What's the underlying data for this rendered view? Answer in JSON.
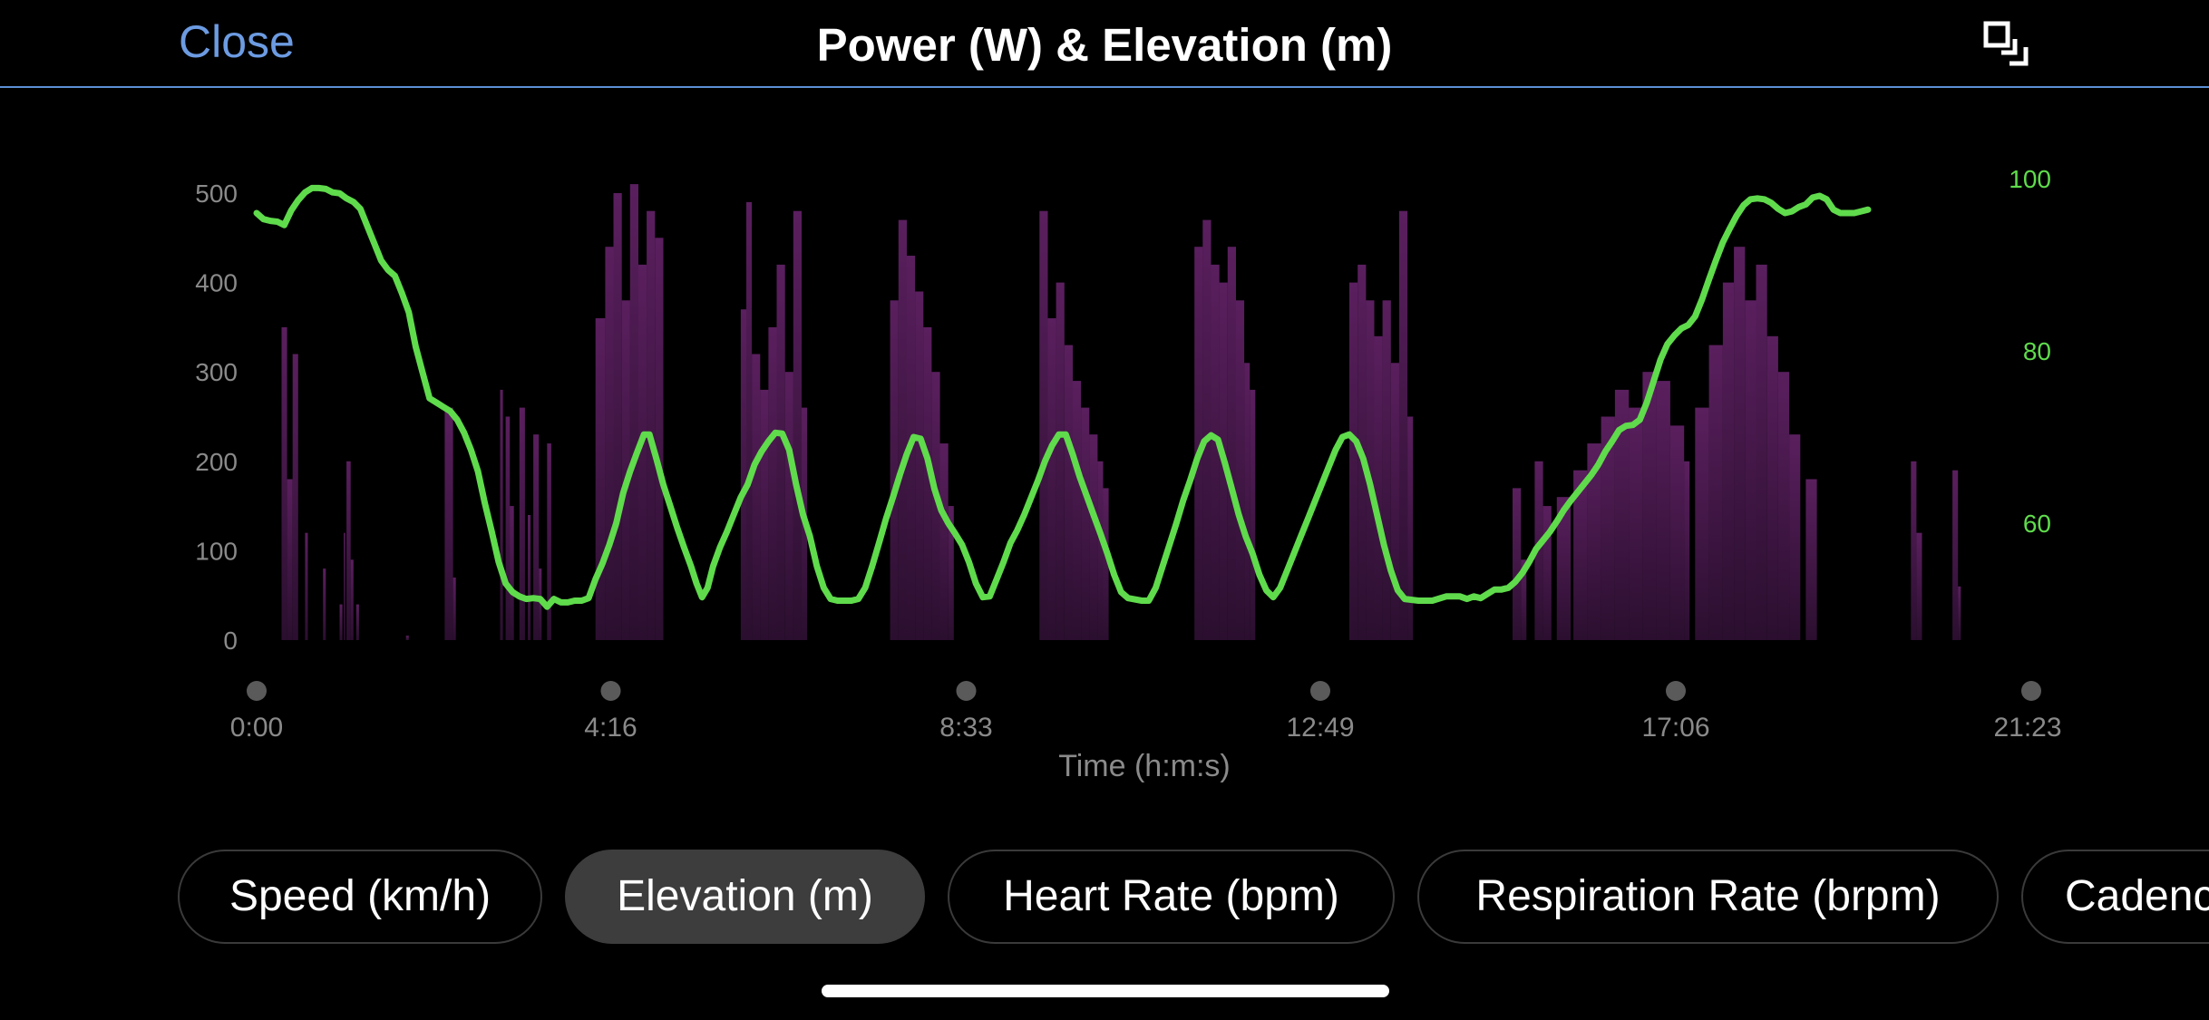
{
  "header": {
    "close_label": "Close",
    "title": "Power (W) & Elevation (m)"
  },
  "icons": {
    "expand": "expand-window-icon"
  },
  "chart_data": {
    "type": "area+line",
    "x_axis": {
      "label": "Time (h:m:s)",
      "tick_labels": [
        "0:00",
        "4:16",
        "8:33",
        "12:49",
        "17:06",
        "21:23"
      ],
      "tick_seconds": [
        0,
        256,
        513,
        769,
        1026,
        1283
      ],
      "range_seconds": [
        0,
        1283
      ]
    },
    "y_left": {
      "series": "Power (W)",
      "ticks": [
        0,
        100,
        200,
        300,
        400,
        500
      ],
      "range": [
        0,
        520
      ]
    },
    "y_right": {
      "series": "Elevation (m)",
      "ticks": [
        60,
        80,
        100
      ],
      "range": [
        47,
        100
      ]
    },
    "colors": {
      "power": "#5a1f5e",
      "elevation": "#5fdb4c",
      "axis_text": "#8a8a8a"
    },
    "power_segments": [
      {
        "t": [
          18,
          22
        ],
        "w": 350
      },
      {
        "t": [
          22,
          26
        ],
        "w": 180
      },
      {
        "t": [
          26,
          30
        ],
        "w": 320
      },
      {
        "t": [
          35,
          37
        ],
        "w": 120
      },
      {
        "t": [
          48,
          50
        ],
        "w": 80
      },
      {
        "t": [
          60,
          62
        ],
        "w": 40
      },
      {
        "t": [
          63,
          64
        ],
        "w": 120
      },
      {
        "t": [
          65,
          68
        ],
        "w": 200
      },
      {
        "t": [
          68,
          70
        ],
        "w": 90
      },
      {
        "t": [
          72,
          74
        ],
        "w": 40
      },
      {
        "t": [
          108,
          110
        ],
        "w": 5
      },
      {
        "t": [
          136,
          142
        ],
        "w": 260
      },
      {
        "t": [
          142,
          144
        ],
        "w": 70
      },
      {
        "t": [
          176,
          178
        ],
        "w": 280
      },
      {
        "t": [
          180,
          183
        ],
        "w": 250
      },
      {
        "t": [
          183,
          186
        ],
        "w": 150
      },
      {
        "t": [
          190,
          194
        ],
        "w": 260
      },
      {
        "t": [
          196,
          198
        ],
        "w": 140
      },
      {
        "t": [
          200,
          204
        ],
        "w": 230
      },
      {
        "t": [
          204,
          206
        ],
        "w": 80
      },
      {
        "t": [
          210,
          213
        ],
        "w": 220
      },
      {
        "t": [
          245,
          252
        ],
        "w": 360
      },
      {
        "t": [
          252,
          258
        ],
        "w": 440
      },
      {
        "t": [
          258,
          264
        ],
        "w": 500
      },
      {
        "t": [
          264,
          270
        ],
        "w": 380
      },
      {
        "t": [
          270,
          276
        ],
        "w": 510
      },
      {
        "t": [
          276,
          282
        ],
        "w": 420
      },
      {
        "t": [
          282,
          288
        ],
        "w": 480
      },
      {
        "t": [
          288,
          294
        ],
        "w": 450
      },
      {
        "t": [
          350,
          354
        ],
        "w": 370
      },
      {
        "t": [
          354,
          358
        ],
        "w": 490
      },
      {
        "t": [
          358,
          364
        ],
        "w": 320
      },
      {
        "t": [
          364,
          370
        ],
        "w": 280
      },
      {
        "t": [
          370,
          376
        ],
        "w": 350
      },
      {
        "t": [
          376,
          382
        ],
        "w": 420
      },
      {
        "t": [
          382,
          388
        ],
        "w": 300
      },
      {
        "t": [
          388,
          394
        ],
        "w": 480
      },
      {
        "t": [
          394,
          398
        ],
        "w": 260
      },
      {
        "t": [
          458,
          464
        ],
        "w": 380
      },
      {
        "t": [
          464,
          470
        ],
        "w": 470
      },
      {
        "t": [
          470,
          476
        ],
        "w": 430
      },
      {
        "t": [
          476,
          482
        ],
        "w": 390
      },
      {
        "t": [
          482,
          488
        ],
        "w": 350
      },
      {
        "t": [
          488,
          494
        ],
        "w": 300
      },
      {
        "t": [
          494,
          500
        ],
        "w": 220
      },
      {
        "t": [
          500,
          504
        ],
        "w": 150
      },
      {
        "t": [
          566,
          572
        ],
        "w": 480
      },
      {
        "t": [
          572,
          578
        ],
        "w": 360
      },
      {
        "t": [
          578,
          584
        ],
        "w": 400
      },
      {
        "t": [
          584,
          590
        ],
        "w": 330
      },
      {
        "t": [
          590,
          596
        ],
        "w": 290
      },
      {
        "t": [
          596,
          602
        ],
        "w": 260
      },
      {
        "t": [
          602,
          608
        ],
        "w": 230
      },
      {
        "t": [
          608,
          612
        ],
        "w": 200
      },
      {
        "t": [
          612,
          616
        ],
        "w": 170
      },
      {
        "t": [
          678,
          684
        ],
        "w": 440
      },
      {
        "t": [
          684,
          690
        ],
        "w": 470
      },
      {
        "t": [
          690,
          696
        ],
        "w": 420
      },
      {
        "t": [
          696,
          702
        ],
        "w": 400
      },
      {
        "t": [
          702,
          708
        ],
        "w": 440
      },
      {
        "t": [
          708,
          714
        ],
        "w": 380
      },
      {
        "t": [
          714,
          718
        ],
        "w": 310
      },
      {
        "t": [
          718,
          722
        ],
        "w": 280
      },
      {
        "t": [
          790,
          796
        ],
        "w": 400
      },
      {
        "t": [
          796,
          802
        ],
        "w": 420
      },
      {
        "t": [
          802,
          808
        ],
        "w": 380
      },
      {
        "t": [
          808,
          814
        ],
        "w": 340
      },
      {
        "t": [
          814,
          820
        ],
        "w": 380
      },
      {
        "t": [
          820,
          826
        ],
        "w": 310
      },
      {
        "t": [
          826,
          832
        ],
        "w": 480
      },
      {
        "t": [
          832,
          836
        ],
        "w": 250
      },
      {
        "t": [
          908,
          914
        ],
        "w": 170
      },
      {
        "t": [
          914,
          918
        ],
        "w": 90
      },
      {
        "t": [
          924,
          930
        ],
        "w": 200
      },
      {
        "t": [
          930,
          936
        ],
        "w": 150
      },
      {
        "t": [
          940,
          950
        ],
        "w": 160
      },
      {
        "t": [
          952,
          962
        ],
        "w": 190
      },
      {
        "t": [
          962,
          972
        ],
        "w": 220
      },
      {
        "t": [
          972,
          982
        ],
        "w": 250
      },
      {
        "t": [
          982,
          992
        ],
        "w": 280
      },
      {
        "t": [
          992,
          1002
        ],
        "w": 260
      },
      {
        "t": [
          1002,
          1012
        ],
        "w": 300
      },
      {
        "t": [
          1012,
          1022
        ],
        "w": 290
      },
      {
        "t": [
          1022,
          1032
        ],
        "w": 240
      },
      {
        "t": [
          1032,
          1036
        ],
        "w": 200
      },
      {
        "t": [
          1040,
          1050
        ],
        "w": 260
      },
      {
        "t": [
          1050,
          1060
        ],
        "w": 330
      },
      {
        "t": [
          1060,
          1068
        ],
        "w": 400
      },
      {
        "t": [
          1068,
          1076
        ],
        "w": 440
      },
      {
        "t": [
          1076,
          1084
        ],
        "w": 380
      },
      {
        "t": [
          1084,
          1092
        ],
        "w": 420
      },
      {
        "t": [
          1092,
          1100
        ],
        "w": 340
      },
      {
        "t": [
          1100,
          1108
        ],
        "w": 300
      },
      {
        "t": [
          1108,
          1116
        ],
        "w": 230
      },
      {
        "t": [
          1120,
          1128
        ],
        "w": 180
      },
      {
        "t": [
          1196,
          1200
        ],
        "w": 200
      },
      {
        "t": [
          1200,
          1204
        ],
        "w": 120
      },
      {
        "t": [
          1226,
          1230
        ],
        "w": 190
      },
      {
        "t": [
          1230,
          1232
        ],
        "w": 60
      }
    ],
    "elevation": [
      [
        0,
        96
      ],
      [
        5,
        95.3
      ],
      [
        10,
        95.1
      ],
      [
        15,
        95
      ],
      [
        20,
        94.6
      ],
      [
        25,
        96.3
      ],
      [
        30,
        97.5
      ],
      [
        35,
        98.4
      ],
      [
        40,
        98.9
      ],
      [
        45,
        98.9
      ],
      [
        50,
        98.8
      ],
      [
        55,
        98.4
      ],
      [
        60,
        98.3
      ],
      [
        65,
        97.7
      ],
      [
        70,
        97.3
      ],
      [
        75,
        96.5
      ],
      [
        80,
        94.5
      ],
      [
        85,
        92.5
      ],
      [
        90,
        90.5
      ],
      [
        95,
        89.4
      ],
      [
        100,
        88.7
      ],
      [
        105,
        86.7
      ],
      [
        110,
        84.5
      ],
      [
        115,
        80.5
      ],
      [
        120,
        77.5
      ],
      [
        125,
        74.5
      ],
      [
        130,
        74
      ],
      [
        135,
        73.5
      ],
      [
        140,
        73
      ],
      [
        145,
        72
      ],
      [
        150,
        70.5
      ],
      [
        155,
        68.5
      ],
      [
        160,
        66
      ],
      [
        165,
        62.3
      ],
      [
        170,
        59
      ],
      [
        175,
        55.5
      ],
      [
        180,
        53
      ],
      [
        185,
        52
      ],
      [
        190,
        51.5
      ],
      [
        195,
        51.2
      ],
      [
        200,
        51.3
      ],
      [
        205,
        51.2
      ],
      [
        210,
        50.3
      ],
      [
        215,
        51.2
      ],
      [
        220,
        50.8
      ],
      [
        225,
        50.8
      ],
      [
        230,
        51
      ],
      [
        235,
        51
      ],
      [
        240,
        51.3
      ],
      [
        245,
        53.5
      ],
      [
        250,
        55.3
      ],
      [
        255,
        57.5
      ],
      [
        260,
        60
      ],
      [
        265,
        63.5
      ],
      [
        270,
        66
      ],
      [
        275,
        68.2
      ],
      [
        280,
        70.3
      ],
      [
        284,
        70.3
      ],
      [
        289,
        67.5
      ],
      [
        294,
        64.5
      ],
      [
        299,
        62
      ],
      [
        304,
        59.5
      ],
      [
        309,
        57.2
      ],
      [
        314,
        55
      ],
      [
        318,
        53
      ],
      [
        322,
        51.4
      ],
      [
        326,
        52.5
      ],
      [
        330,
        55
      ],
      [
        335,
        57.2
      ],
      [
        340,
        59
      ],
      [
        345,
        61
      ],
      [
        350,
        63
      ],
      [
        355,
        64.5
      ],
      [
        360,
        66.8
      ],
      [
        365,
        68.3
      ],
      [
        370,
        69.5
      ],
      [
        375,
        70.5
      ],
      [
        380,
        70.4
      ],
      [
        385,
        68.5
      ],
      [
        390,
        64.5
      ],
      [
        395,
        61
      ],
      [
        400,
        58.5
      ],
      [
        405,
        55
      ],
      [
        410,
        52.5
      ],
      [
        415,
        51.2
      ],
      [
        420,
        51
      ],
      [
        430,
        51
      ],
      [
        435,
        51.2
      ],
      [
        440,
        52.5
      ],
      [
        445,
        55
      ],
      [
        450,
        57.7
      ],
      [
        455,
        60.5
      ],
      [
        460,
        63
      ],
      [
        465,
        65.6
      ],
      [
        470,
        68
      ],
      [
        475,
        70
      ],
      [
        480,
        69.8
      ],
      [
        485,
        67.5
      ],
      [
        490,
        64
      ],
      [
        495,
        61.5
      ],
      [
        500,
        60
      ],
      [
        505,
        58.8
      ],
      [
        510,
        57.5
      ],
      [
        515,
        55.5
      ],
      [
        520,
        53
      ],
      [
        525,
        51.4
      ],
      [
        530,
        51.5
      ],
      [
        535,
        53.5
      ],
      [
        540,
        55.5
      ],
      [
        545,
        57.7
      ],
      [
        550,
        59.2
      ],
      [
        555,
        61
      ],
      [
        560,
        63
      ],
      [
        565,
        65
      ],
      [
        570,
        67.2
      ],
      [
        575,
        69
      ],
      [
        580,
        70.3
      ],
      [
        585,
        70.3
      ],
      [
        590,
        68
      ],
      [
        595,
        65.4
      ],
      [
        600,
        63.2
      ],
      [
        605,
        61
      ],
      [
        610,
        58.8
      ],
      [
        615,
        56.5
      ],
      [
        620,
        54
      ],
      [
        625,
        52
      ],
      [
        630,
        51.3
      ],
      [
        640,
        51
      ],
      [
        645,
        51
      ],
      [
        650,
        52.5
      ],
      [
        655,
        55
      ],
      [
        660,
        57.5
      ],
      [
        665,
        60
      ],
      [
        670,
        62.7
      ],
      [
        675,
        65
      ],
      [
        680,
        67.5
      ],
      [
        685,
        69.5
      ],
      [
        690,
        70.2
      ],
      [
        695,
        69.7
      ],
      [
        700,
        67
      ],
      [
        705,
        64
      ],
      [
        710,
        61
      ],
      [
        715,
        58.5
      ],
      [
        720,
        56.5
      ],
      [
        725,
        54
      ],
      [
        730,
        52.2
      ],
      [
        735,
        51.4
      ],
      [
        740,
        52.5
      ],
      [
        745,
        54.5
      ],
      [
        750,
        56.5
      ],
      [
        755,
        58.5
      ],
      [
        760,
        60.5
      ],
      [
        765,
        62.5
      ],
      [
        770,
        64.5
      ],
      [
        775,
        66.5
      ],
      [
        780,
        68.5
      ],
      [
        785,
        70
      ],
      [
        790,
        70.3
      ],
      [
        795,
        69.5
      ],
      [
        800,
        67.5
      ],
      [
        805,
        64.5
      ],
      [
        810,
        61
      ],
      [
        815,
        57.5
      ],
      [
        820,
        54.5
      ],
      [
        825,
        52.2
      ],
      [
        830,
        51.2
      ],
      [
        840,
        51
      ],
      [
        850,
        51
      ],
      [
        860,
        51.5
      ],
      [
        870,
        51.5
      ],
      [
        875,
        51.2
      ],
      [
        880,
        51.5
      ],
      [
        885,
        51.3
      ],
      [
        890,
        51.8
      ],
      [
        895,
        52.3
      ],
      [
        900,
        52.3
      ],
      [
        905,
        52.5
      ],
      [
        910,
        53.2
      ],
      [
        915,
        54.2
      ],
      [
        920,
        55.5
      ],
      [
        925,
        57
      ],
      [
        930,
        58
      ],
      [
        935,
        59
      ],
      [
        940,
        60.2
      ],
      [
        945,
        61.5
      ],
      [
        950,
        62.6
      ],
      [
        955,
        63.6
      ],
      [
        960,
        64.6
      ],
      [
        965,
        65.6
      ],
      [
        970,
        66.8
      ],
      [
        975,
        68.3
      ],
      [
        980,
        69.5
      ],
      [
        985,
        70.8
      ],
      [
        990,
        71.3
      ],
      [
        995,
        71.4
      ],
      [
        1000,
        72
      ],
      [
        1005,
        74
      ],
      [
        1010,
        76.5
      ],
      [
        1015,
        79
      ],
      [
        1020,
        80.8
      ],
      [
        1025,
        81.8
      ],
      [
        1030,
        82.6
      ],
      [
        1035,
        83
      ],
      [
        1040,
        84
      ],
      [
        1045,
        86
      ],
      [
        1050,
        88.3
      ],
      [
        1055,
        90.5
      ],
      [
        1060,
        92.6
      ],
      [
        1065,
        94.2
      ],
      [
        1070,
        95.7
      ],
      [
        1075,
        96.9
      ],
      [
        1080,
        97.6
      ],
      [
        1085,
        97.7
      ],
      [
        1090,
        97.6
      ],
      [
        1095,
        97.2
      ],
      [
        1100,
        96.5
      ],
      [
        1105,
        96
      ],
      [
        1110,
        96.2
      ],
      [
        1115,
        96.7
      ],
      [
        1120,
        97
      ],
      [
        1125,
        97.8
      ],
      [
        1130,
        98
      ],
      [
        1135,
        97.6
      ],
      [
        1140,
        96.4
      ],
      [
        1145,
        96
      ],
      [
        1150,
        96
      ],
      [
        1155,
        96
      ],
      [
        1160,
        96.2
      ],
      [
        1165,
        96.4
      ]
    ]
  },
  "metric_tabs": [
    {
      "label": "Speed (km/h)",
      "selected": false
    },
    {
      "label": "Elevation (m)",
      "selected": true
    },
    {
      "label": "Heart Rate (bpm)",
      "selected": false
    },
    {
      "label": "Respiration Rate (brpm)",
      "selected": false
    },
    {
      "label": "Cadence",
      "selected": false
    }
  ]
}
